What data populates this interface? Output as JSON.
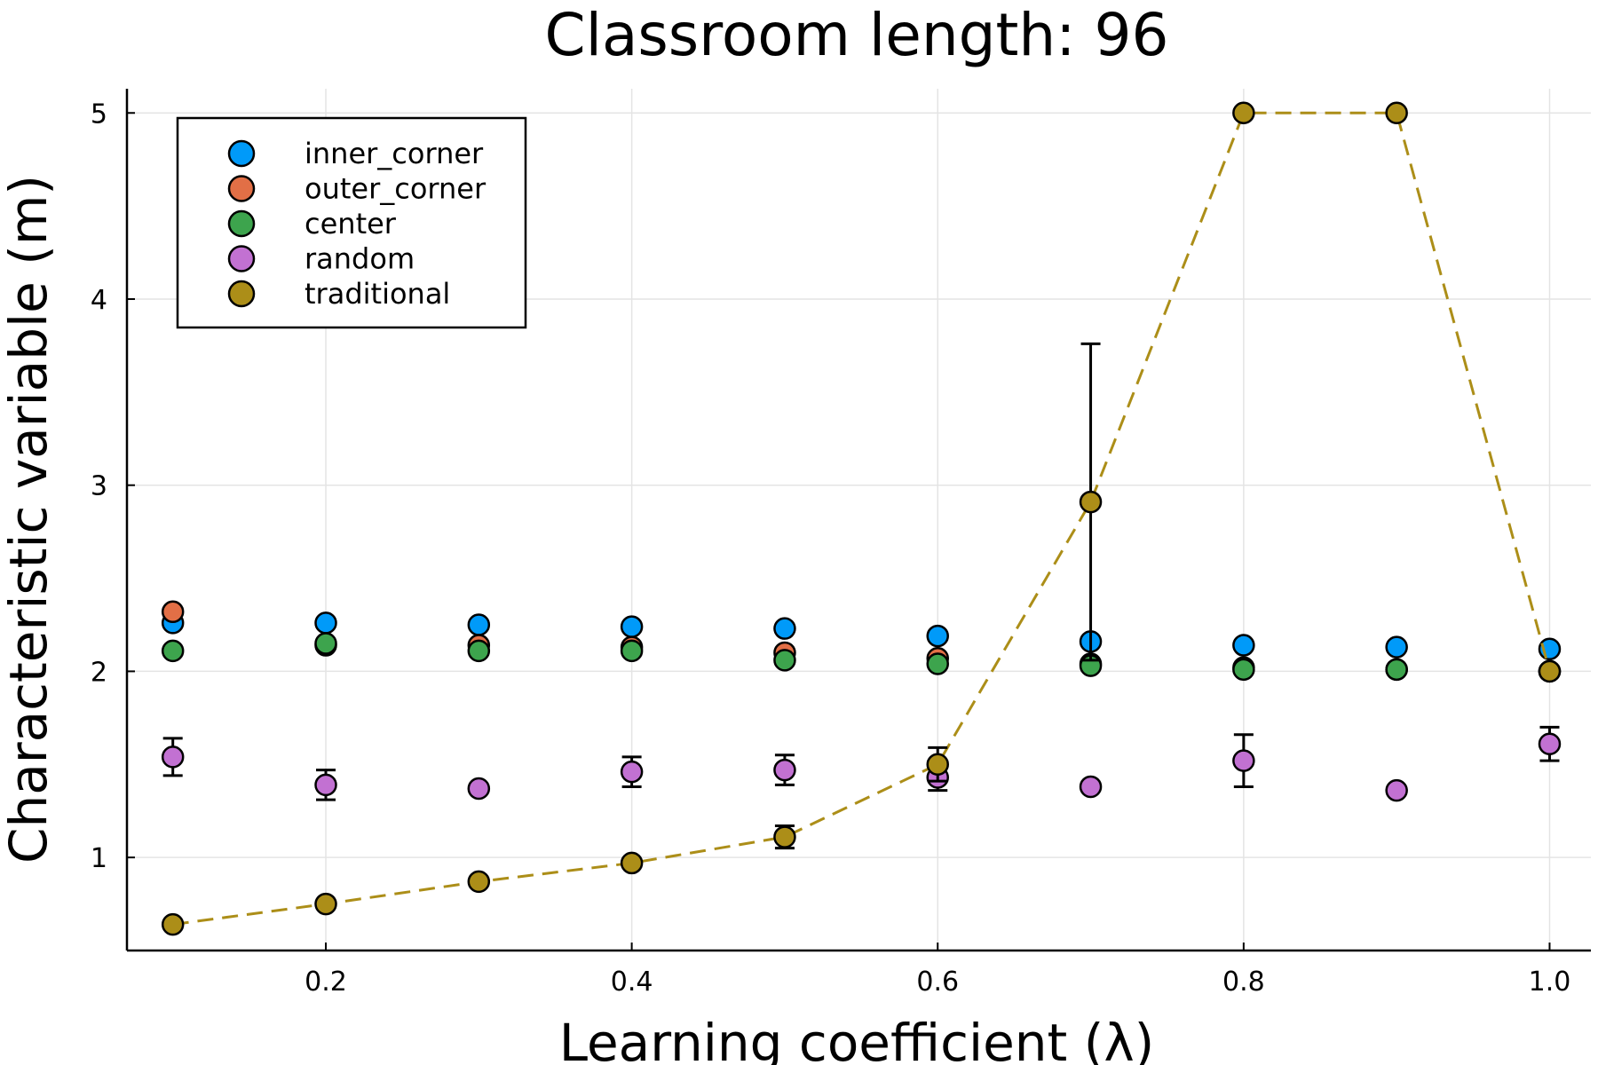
{
  "chart_data": {
    "type": "scatter",
    "title": "Classroom length: 96",
    "xlabel": "Learning coefficient (λ)",
    "ylabel": "Characteristic variable (m)",
    "xlim": [
      0.07,
      1.027
    ],
    "ylim": [
      0.5,
      5.13
    ],
    "x": [
      0.1,
      0.2,
      0.3,
      0.4,
      0.5,
      0.6,
      0.7,
      0.8,
      0.9,
      1.0
    ],
    "xticks": [
      0.2,
      0.4,
      0.6,
      0.8,
      1.0
    ],
    "xtick_labels": [
      "0.2",
      "0.4",
      "0.6",
      "0.8",
      "1.0"
    ],
    "yticks": [
      1,
      2,
      3,
      4,
      5
    ],
    "ytick_labels": [
      "1",
      "2",
      "3",
      "4",
      "5"
    ],
    "grid": true,
    "legend_position": "top-left",
    "series": [
      {
        "name": "inner_corner",
        "color": "#009af9",
        "values": [
          2.26,
          2.26,
          2.25,
          2.24,
          2.23,
          2.19,
          2.16,
          2.14,
          2.13,
          2.12
        ],
        "errors": [
          0.02,
          0.02,
          0.02,
          0.02,
          0.01,
          0.01,
          0.01,
          0.01,
          0.01,
          0.01
        ],
        "line": false
      },
      {
        "name": "outer_corner",
        "color": "#e26f46",
        "values": [
          2.32,
          2.14,
          2.14,
          2.13,
          2.1,
          2.07,
          2.04,
          2.02,
          2.01,
          2.0
        ],
        "errors": [
          0.02,
          0.02,
          0.02,
          0.02,
          0.01,
          0.01,
          0.01,
          0.01,
          0.01,
          0.01
        ],
        "line": false
      },
      {
        "name": "center",
        "color": "#3da44d",
        "values": [
          2.11,
          2.15,
          2.11,
          2.11,
          2.06,
          2.04,
          2.03,
          2.01,
          2.01,
          2.0
        ],
        "errors": [
          0.02,
          0.02,
          0.02,
          0.02,
          0.01,
          0.01,
          0.01,
          0.01,
          0.01,
          0.01
        ],
        "line": false
      },
      {
        "name": "random",
        "color": "#c271d2",
        "values": [
          1.54,
          1.39,
          1.37,
          1.46,
          1.47,
          1.43,
          1.38,
          1.52,
          1.36,
          1.61
        ],
        "errors": [
          0.1,
          0.08,
          0.04,
          0.08,
          0.08,
          0.07,
          0.03,
          0.14,
          0.03,
          0.09
        ],
        "line": false
      },
      {
        "name": "traditional",
        "color": "#ac8e18",
        "values": [
          0.64,
          0.75,
          0.87,
          0.97,
          1.11,
          1.5,
          2.91,
          5.0,
          5.0,
          2.0
        ],
        "errors": [
          0.02,
          0.03,
          0.03,
          0.04,
          0.06,
          0.09,
          0.85,
          0.0,
          0.0,
          0.0
        ],
        "line": true,
        "dash": "dashed"
      }
    ]
  }
}
